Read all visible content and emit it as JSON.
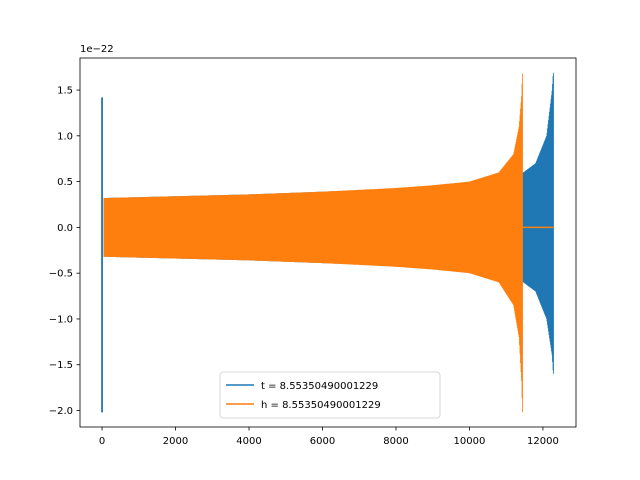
{
  "chart_data": {
    "type": "line",
    "title": "",
    "xlabel": "",
    "ylabel": "",
    "y_offset_label": "1e−22",
    "xlim": [
      -600,
      12900
    ],
    "ylim": [
      -2.18,
      1.85
    ],
    "x_ticks": [
      0,
      2000,
      4000,
      6000,
      8000,
      10000,
      12000
    ],
    "x_tick_labels": [
      "0",
      "2000",
      "4000",
      "6000",
      "8000",
      "10000",
      "12000"
    ],
    "y_ticks": [
      -2.0,
      -1.5,
      -1.0,
      -0.5,
      0.0,
      0.5,
      1.0,
      1.5
    ],
    "y_tick_labels": [
      "−2.0",
      "−1.5",
      "−1.0",
      "−0.5",
      "0.0",
      "0.5",
      "1.0",
      "1.5"
    ],
    "grid": false,
    "legend_position": "lower-center",
    "series": [
      {
        "name": "t = 8.55350490001229",
        "color": "#1f77b4",
        "spike": {
          "x": 0,
          "max": 1.42,
          "min": -2.02
        },
        "envelope_upper": [
          [
            0,
            0.32
          ],
          [
            2000,
            0.34
          ],
          [
            4000,
            0.36
          ],
          [
            6000,
            0.39
          ],
          [
            8000,
            0.42
          ],
          [
            10000,
            0.49
          ],
          [
            11000,
            0.55
          ],
          [
            11400,
            0.58
          ],
          [
            11800,
            0.7
          ],
          [
            12100,
            1.0
          ],
          [
            12250,
            1.5
          ],
          [
            12280,
            1.69
          ]
        ],
        "envelope_lower": [
          [
            0,
            -0.32
          ],
          [
            2000,
            -0.34
          ],
          [
            4000,
            -0.36
          ],
          [
            6000,
            -0.39
          ],
          [
            8000,
            -0.42
          ],
          [
            10000,
            -0.49
          ],
          [
            11000,
            -0.55
          ],
          [
            11400,
            -0.58
          ],
          [
            11800,
            -0.7
          ],
          [
            12100,
            -1.0
          ],
          [
            12250,
            -1.4
          ],
          [
            12280,
            -1.6
          ]
        ],
        "end_x": 12290
      },
      {
        "name": "h = 8.55350490001229",
        "color": "#ff7f0e",
        "spike": {
          "x": 0,
          "max": 0.0,
          "min": 0.0
        },
        "envelope_upper": [
          [
            0,
            0.32
          ],
          [
            2000,
            0.34
          ],
          [
            4000,
            0.36
          ],
          [
            6000,
            0.39
          ],
          [
            8000,
            0.43
          ],
          [
            9000,
            0.46
          ],
          [
            10000,
            0.5
          ],
          [
            10800,
            0.6
          ],
          [
            11200,
            0.8
          ],
          [
            11350,
            1.1
          ],
          [
            11420,
            1.45
          ],
          [
            11440,
            1.68
          ]
        ],
        "envelope_lower": [
          [
            0,
            -0.32
          ],
          [
            2000,
            -0.34
          ],
          [
            4000,
            -0.36
          ],
          [
            6000,
            -0.39
          ],
          [
            8000,
            -0.43
          ],
          [
            9000,
            -0.46
          ],
          [
            10000,
            -0.5
          ],
          [
            10800,
            -0.6
          ],
          [
            11200,
            -0.85
          ],
          [
            11350,
            -1.2
          ],
          [
            11420,
            -1.7
          ],
          [
            11440,
            -2.02
          ]
        ],
        "end_x": 11450,
        "tail": {
          "x_start": 11450,
          "x_end": 12290,
          "value": 0.0
        }
      }
    ]
  }
}
